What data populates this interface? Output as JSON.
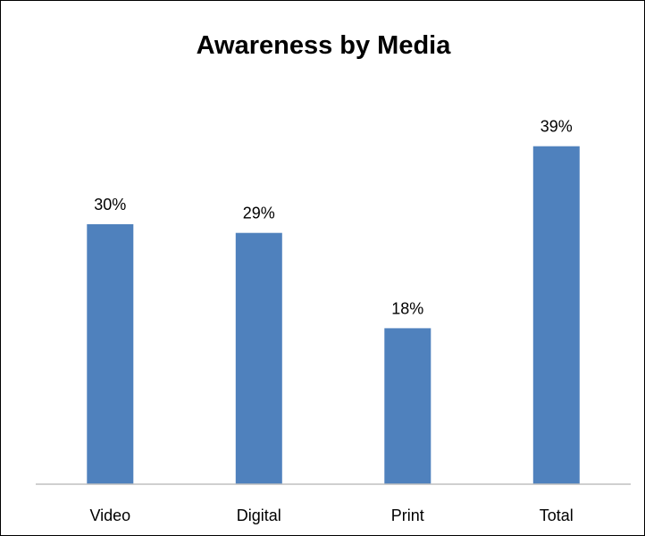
{
  "chart_data": {
    "type": "bar",
    "title": "Awareness by Media",
    "categories": [
      "Video",
      "Digital",
      "Print",
      "Total"
    ],
    "values": [
      30,
      29,
      18,
      39
    ],
    "value_labels": [
      "30%",
      "29%",
      "18%",
      "39%"
    ],
    "unit": "%",
    "xlabel": "",
    "ylabel": "",
    "ylim": [
      0,
      45
    ],
    "grid": false,
    "legend": "none",
    "bar_color": "#4F81BD",
    "axis_color": "#BFBFBF"
  }
}
